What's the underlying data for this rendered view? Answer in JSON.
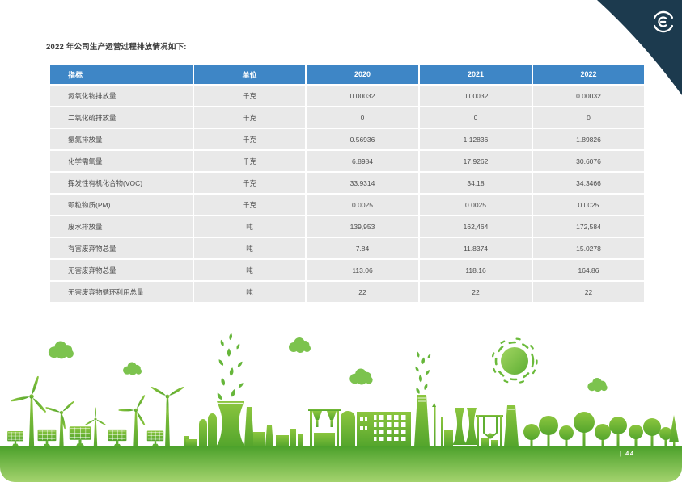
{
  "page": {
    "title": "2022 年公司生产运营过程排放情况如下:",
    "page_number": "| 44"
  },
  "table": {
    "columns": [
      "指标",
      "单位",
      "2020",
      "2021",
      "2022"
    ],
    "rows": [
      [
        "氮氧化物排放量",
        "千克",
        "0.00032",
        "0.00032",
        "0.00032"
      ],
      [
        "二氧化硫排放量",
        "千克",
        "0",
        "0",
        "0"
      ],
      [
        "氨氮排放量",
        "千克",
        "0.56936",
        "1.12836",
        "1.89826"
      ],
      [
        "化学需氧量",
        "千克",
        "6.8984",
        "17.9262",
        "30.6076"
      ],
      [
        "挥发性有机化合物(VOC)",
        "千克",
        "33.9314",
        "34.18",
        "34.3466"
      ],
      [
        "颗粒物质(PM)",
        "千克",
        "0.0025",
        "0.0025",
        "0.0025"
      ],
      [
        "废水排放量",
        "吨",
        "139,953",
        "162,464",
        "172,584"
      ],
      [
        "有害废弃物总量",
        "吨",
        "7.84",
        "11.8374",
        "15.0278"
      ],
      [
        "无害废弃物总量",
        "吨",
        "113.06",
        "118.16",
        "164.86"
      ],
      [
        "无害废弃物循环利用总量",
        "吨",
        "22",
        "22",
        "22"
      ]
    ]
  },
  "chart_data": {
    "type": "table",
    "title": "2022 年公司生产运营过程排放情况如下:",
    "columns": [
      "指标",
      "单位",
      "2020",
      "2021",
      "2022"
    ],
    "rows": [
      [
        "氮氧化物排放量",
        "千克",
        0.00032,
        0.00032,
        0.00032
      ],
      [
        "二氧化硫排放量",
        "千克",
        0,
        0,
        0
      ],
      [
        "氨氮排放量",
        "千克",
        0.56936,
        1.12836,
        1.89826
      ],
      [
        "化学需氧量",
        "千克",
        6.8984,
        17.9262,
        30.6076
      ],
      [
        "挥发性有机化合物(VOC)",
        "千克",
        33.9314,
        34.18,
        34.3466
      ],
      [
        "颗粒物质(PM)",
        "千克",
        0.0025,
        0.0025,
        0.0025
      ],
      [
        "废水排放量",
        "吨",
        139953,
        162464,
        172584
      ],
      [
        "有害废弃物总量",
        "吨",
        7.84,
        11.8374,
        15.0278
      ],
      [
        "无害废弃物总量",
        "吨",
        113.06,
        118.16,
        164.86
      ],
      [
        "无害废弃物循环利用总量",
        "吨",
        22,
        22,
        22
      ]
    ]
  },
  "colors": {
    "header_blue": "#3E86C6",
    "row_gray": "#E9E9E9",
    "text_dark": "#4D4D4D",
    "corner_navy": "#1C3A4E",
    "green_light": "#8DC63F",
    "green_dark": "#54A52C"
  },
  "illustration": {
    "description": "green eco-city skyline with renewable energy",
    "elements": [
      "wind-turbines",
      "solar-panels",
      "clouds",
      "cooling-tower-leaf-plume",
      "factory-buildings",
      "chimney-leaf-smoke",
      "sun",
      "trees",
      "ground-band"
    ]
  }
}
